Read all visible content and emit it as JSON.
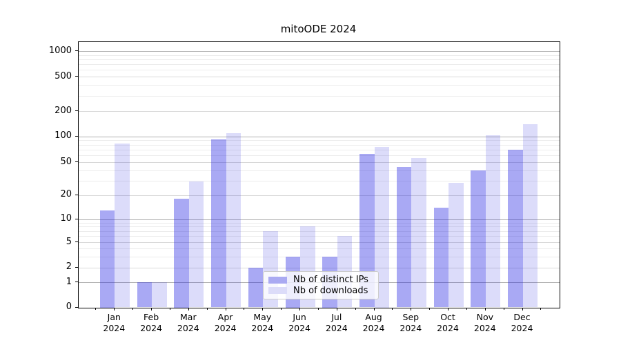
{
  "title": "mitoODE 2024",
  "chart_data": {
    "type": "bar",
    "title": "mitoODE 2024",
    "xlabel": "",
    "ylabel": "",
    "year_label": "2024",
    "categories": [
      "Jan",
      "Feb",
      "Mar",
      "Apr",
      "May",
      "Jun",
      "Jul",
      "Aug",
      "Sep",
      "Oct",
      "Nov",
      "Dec"
    ],
    "series": [
      {
        "name": "Nb of distinct IPs",
        "color": "rgba(30,30,225,0.38)",
        "color_hex_on_white": "#aaaaf2",
        "values": [
          13,
          1,
          18,
          93,
          2,
          3,
          3,
          62,
          44,
          14,
          40,
          70
        ]
      },
      {
        "name": "Nb of downloads",
        "color": "rgba(30,30,225,0.155)",
        "color_hex_on_white": "#dcdcf9",
        "values": [
          82,
          1,
          29,
          110,
          7,
          8,
          6,
          76,
          56,
          28,
          103,
          140
        ]
      }
    ],
    "yscale": "symlog",
    "yticks": [
      0,
      1,
      2,
      5,
      10,
      20,
      50,
      100,
      200,
      500,
      1000
    ],
    "ylim": [
      0,
      1500
    ],
    "grid": true,
    "legend_position": "lower center, inside axes"
  },
  "legend": {
    "items": [
      {
        "label": "Nb of distinct IPs"
      },
      {
        "label": "Nb of downloads"
      }
    ]
  }
}
